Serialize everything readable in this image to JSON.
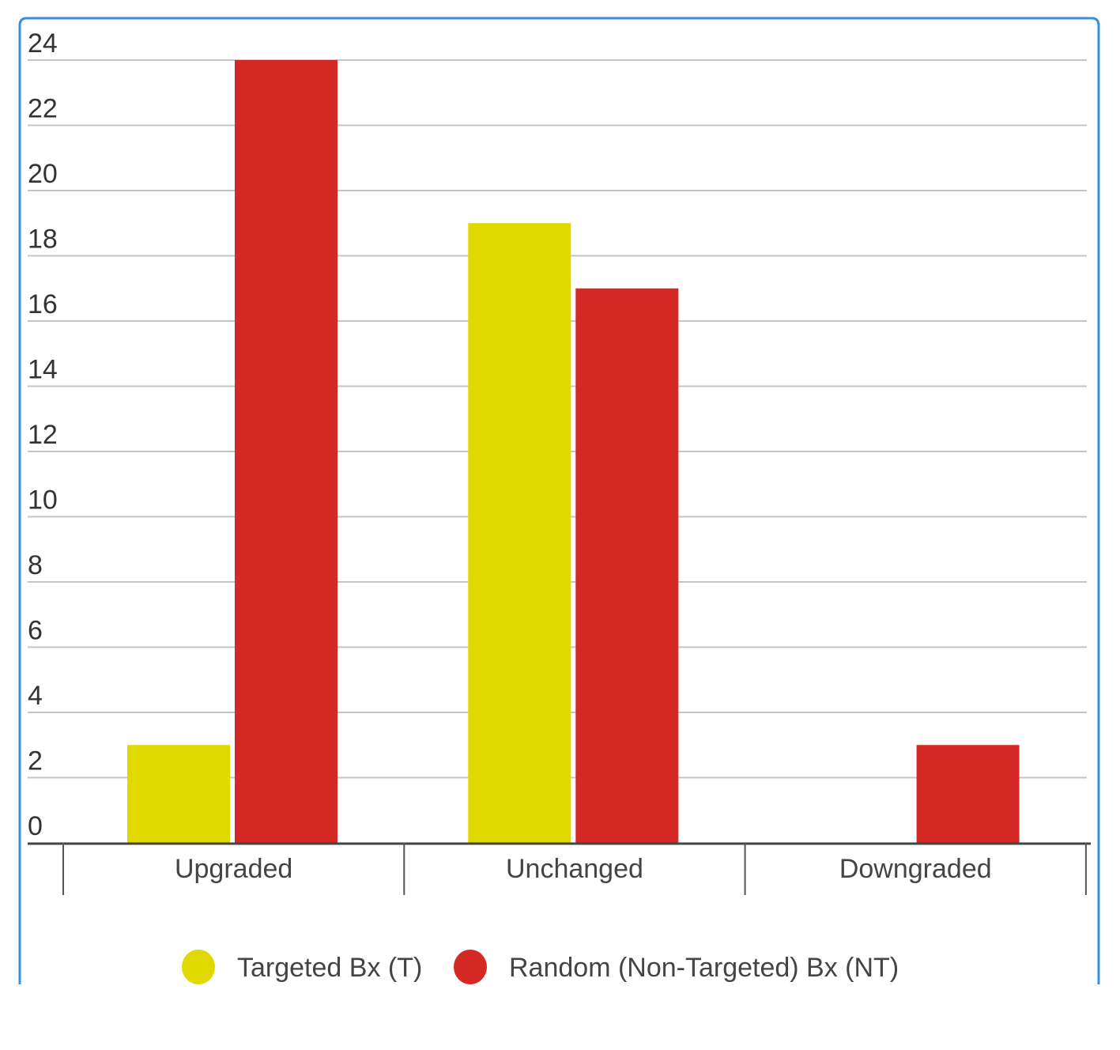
{
  "chart_data": {
    "type": "bar",
    "categories": [
      "Upgraded",
      "Unchanged",
      "Downgraded"
    ],
    "series": [
      {
        "name": "Targeted Bx (T)",
        "color": "#dfd900",
        "values": [
          3,
          19,
          0
        ]
      },
      {
        "name": "Random (Non-Targeted) Bx (NT)",
        "color": "#d42924",
        "values": [
          24,
          17,
          3
        ]
      }
    ],
    "yticks": [
      0,
      2,
      4,
      6,
      8,
      10,
      12,
      14,
      16,
      18,
      20,
      22,
      24
    ],
    "ylim": [
      0,
      24
    ],
    "grid": true,
    "legend": "bottom",
    "border_color": "#3b8fd9"
  }
}
